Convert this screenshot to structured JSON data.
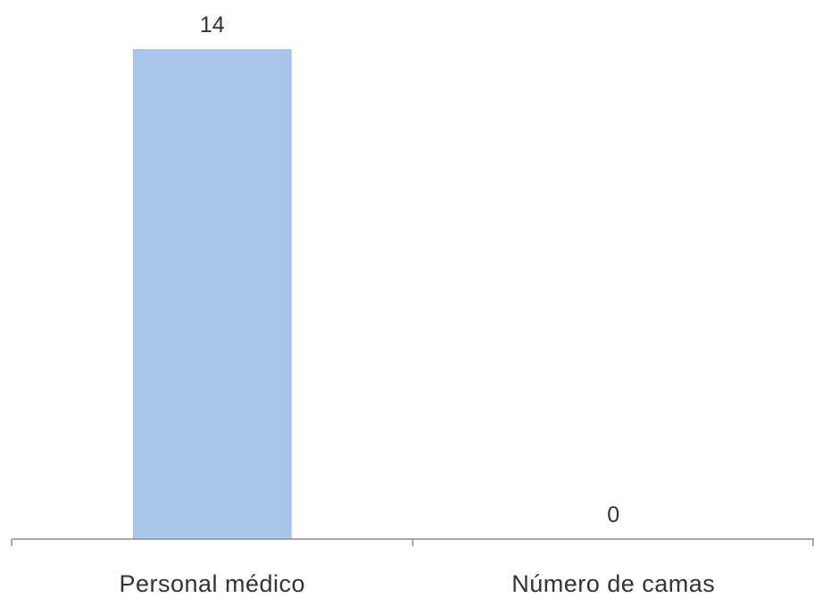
{
  "chart_data": {
    "type": "bar",
    "categories": [
      "Personal médico",
      "Número de camas"
    ],
    "values": [
      14,
      0
    ],
    "title": "",
    "xlabel": "",
    "ylabel": "",
    "ylim": [
      0,
      14
    ],
    "grid": false,
    "legend": "none",
    "data_labels": true,
    "bar_color": "#A9C6EA",
    "axis_color": "#8C8C8C",
    "text_color": "#333333"
  }
}
